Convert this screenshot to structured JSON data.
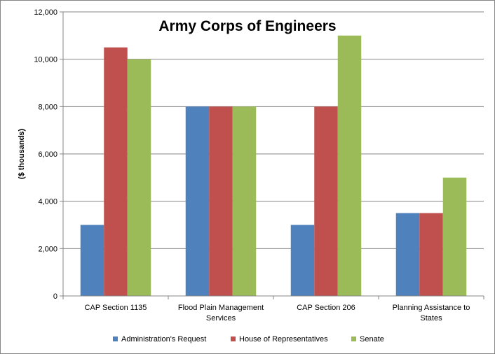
{
  "chart_data": {
    "type": "bar",
    "title": "Army Corps of Engineers",
    "ylabel": "($ thousands)",
    "xlabel": "",
    "ylim": [
      0,
      12000
    ],
    "yticks": [
      0,
      2000,
      4000,
      6000,
      8000,
      10000,
      12000
    ],
    "ytick_labels": [
      "0",
      "2,000",
      "4,000",
      "6,000",
      "8,000",
      "10,000",
      "12,000"
    ],
    "grid": true,
    "legend_position": "bottom",
    "categories": [
      [
        "CAP Section 1135"
      ],
      [
        "Flood Plain Management",
        "Services"
      ],
      [
        "CAP Section 206"
      ],
      [
        "Planning Assistance to",
        "States"
      ]
    ],
    "series": [
      {
        "name": "Administration's Request",
        "color": "#4f81bd",
        "values": [
          3000,
          8000,
          3000,
          3500
        ]
      },
      {
        "name": "House of Representatives",
        "color": "#c0504d",
        "values": [
          10500,
          8000,
          8000,
          3500
        ]
      },
      {
        "name": "Senate",
        "color": "#9bbb59",
        "values": [
          10000,
          8000,
          11000,
          5000
        ]
      }
    ]
  }
}
